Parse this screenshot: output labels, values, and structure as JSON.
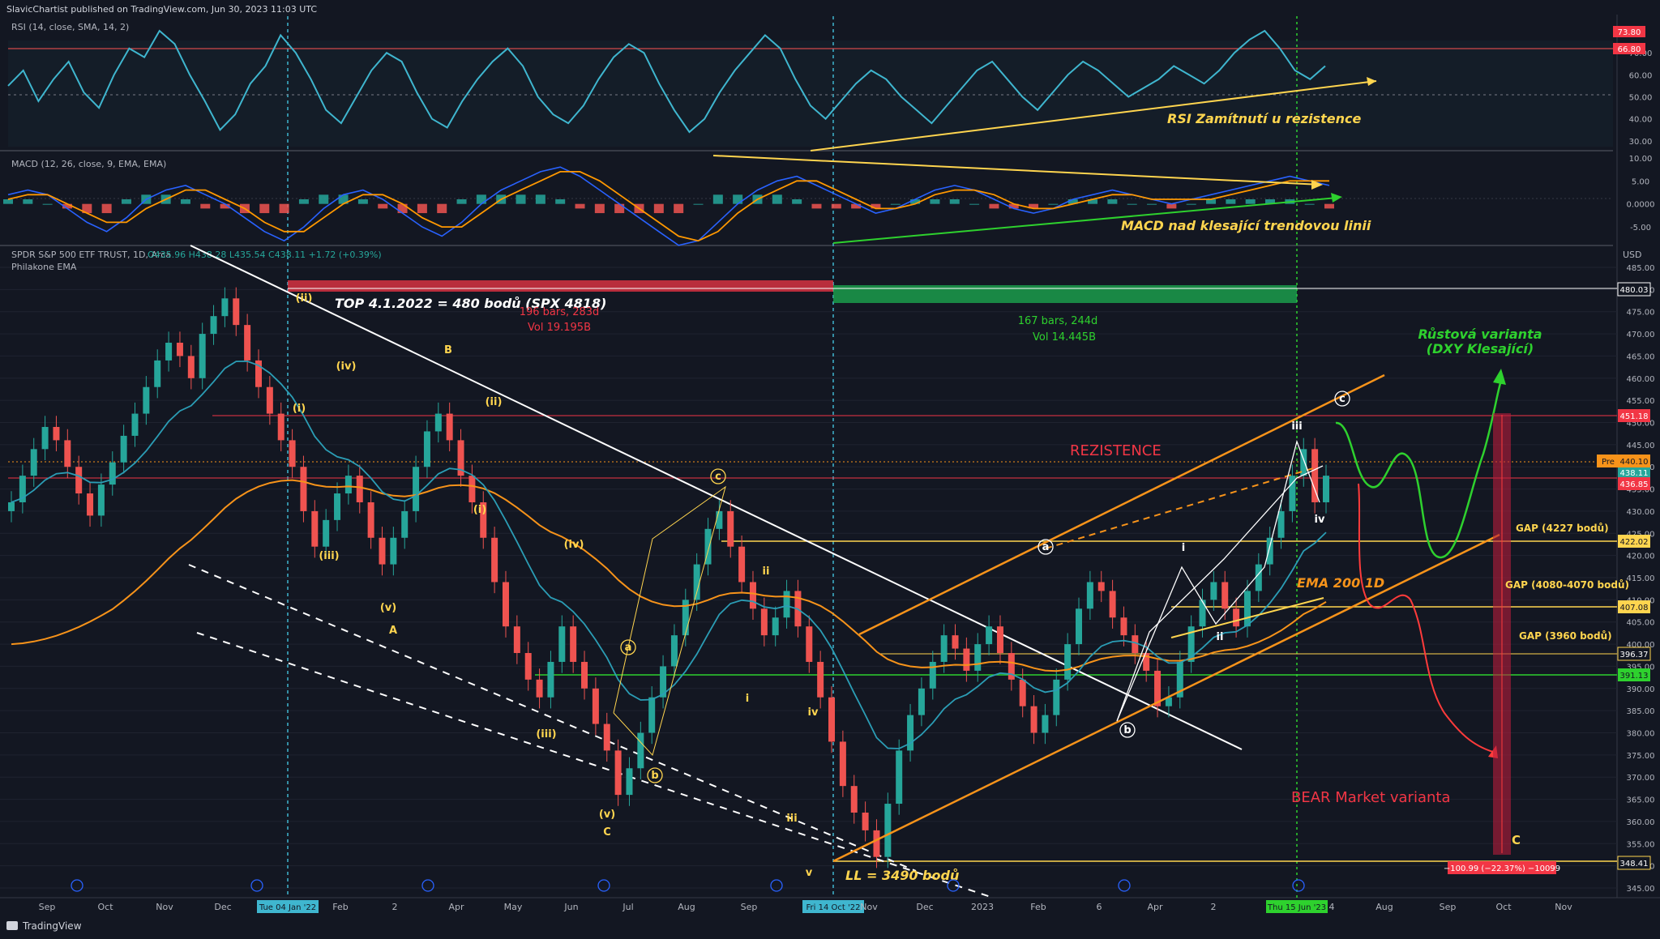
{
  "header": "SlavicChartist published on TradingView.com, Jun 30, 2023 11:03 UTC",
  "footer_logo": "TradingView",
  "colors": {
    "bg": "#131722",
    "grid": "#2a2e39",
    "rsi": "#3fb6cf",
    "macd": "#2962ff",
    "signal": "#ff9800",
    "up": "#26a69a",
    "down": "#ef5350",
    "yellow": "#ffd54f",
    "orange": "#f7931a",
    "green": "#2ed12e",
    "red": "#ff3b3b",
    "white": "#ffffff"
  },
  "rsi_panel": {
    "label": "RSI (14, close, SMA, 14, 2)",
    "ticks": [
      "70.00",
      "60.00",
      "50.00",
      "40.00",
      "30.00"
    ],
    "badges": [
      "73.80",
      "66.80"
    ],
    "annotation": "RSI Zamítnutí u rezistence",
    "series": [
      55,
      62,
      48,
      58,
      66,
      52,
      45,
      60,
      72,
      68,
      80,
      74,
      60,
      48,
      35,
      42,
      56,
      64,
      78,
      70,
      58,
      44,
      38,
      50,
      62,
      70,
      66,
      52,
      40,
      36,
      48,
      58,
      66,
      72,
      64,
      50,
      42,
      38,
      46,
      58,
      68,
      74,
      70,
      56,
      44,
      34,
      40,
      52,
      62,
      70,
      78,
      72,
      58,
      46,
      40,
      48,
      56,
      62,
      58,
      50,
      44,
      38,
      46,
      54,
      62,
      66,
      58,
      50,
      44,
      52,
      60,
      66,
      62,
      56,
      50,
      54,
      58,
      64,
      60,
      56,
      62,
      70,
      76,
      84,
      72,
      62,
      58,
      64
    ]
  },
  "macd_panel": {
    "label": "MACD (12, 26, close, 9, EMA, EMA)",
    "ticks": [
      "10.00",
      "5.00",
      "0.0000",
      "-5.00"
    ],
    "annotation": "MACD nad klesající trendovou linii",
    "macd": [
      2,
      3,
      2,
      -1,
      -4,
      -6,
      -3,
      1,
      3,
      4,
      2,
      0,
      -3,
      -6,
      -8,
      -5,
      -1,
      2,
      3,
      1,
      -2,
      -5,
      -7,
      -4,
      0,
      3,
      5,
      7,
      8,
      6,
      3,
      0,
      -3,
      -6,
      -9,
      -8,
      -4,
      0,
      3,
      5,
      6,
      4,
      2,
      0,
      -2,
      -1,
      1,
      3,
      4,
      3,
      1,
      -1,
      -2,
      -1,
      1,
      2,
      3,
      2,
      1,
      0,
      1,
      2,
      3,
      4,
      5,
      6,
      5,
      4
    ],
    "signal": [
      1,
      2,
      2,
      0,
      -2,
      -4,
      -4,
      -1,
      1,
      3,
      3,
      1,
      -1,
      -4,
      -6,
      -6,
      -3,
      0,
      2,
      2,
      0,
      -3,
      -5,
      -5,
      -2,
      1,
      3,
      5,
      7,
      7,
      5,
      2,
      -1,
      -4,
      -7,
      -8,
      -6,
      -2,
      1,
      3,
      5,
      5,
      3,
      1,
      -1,
      -1,
      0,
      2,
      3,
      3,
      2,
      0,
      -1,
      -1,
      0,
      1,
      2,
      2,
      1,
      1,
      1,
      1,
      2,
      3,
      4,
      5,
      5,
      5
    ]
  },
  "price_panel": {
    "title": "SPDR S&P 500 ETF TRUST, 1D, Arca",
    "ohlc": "O435.96 H438.28 L435.54 C438.11 +1.72 (+0.39%)",
    "indicator": "Philakone EMA",
    "currency": "USD",
    "ticks": [
      "485.00",
      "480.00",
      "475.00",
      "470.00",
      "465.00",
      "460.00",
      "455.00",
      "450.00",
      "445.00",
      "440.00",
      "435.00",
      "430.00",
      "425.00",
      "420.00",
      "415.00",
      "410.00",
      "405.00",
      "400.00",
      "395.00",
      "390.00",
      "385.00",
      "380.00",
      "375.00",
      "370.00",
      "365.00",
      "360.00",
      "355.00",
      "350.00",
      "345.00"
    ],
    "price_badges": {
      "top": "480.03",
      "resist": "451.18",
      "pre_label": "Pre",
      "pre": "440.10",
      "last": "438.11",
      "r2": "436.85",
      "g1": "422.02",
      "g2": "407.08",
      "g3": "396.37",
      "support": "391.13",
      "low": "348.41",
      "drop": "−100.99 (−22.37%) −10099"
    },
    "time_axis": [
      "Sep",
      "Oct",
      "Nov",
      "Dec",
      "Tue 04 Jan '22",
      "Feb",
      "2",
      "Apr",
      "May",
      "Jun",
      "Jul",
      "Aug",
      "Sep",
      "Fri 14 Oct '22",
      "Nov",
      "Dec",
      "2023",
      "Feb",
      "6",
      "Apr",
      "2",
      "Thu 15 Jun '23",
      "4",
      "Aug",
      "Sep",
      "Oct",
      "Nov"
    ],
    "annotations": {
      "top": "TOP 4.1.2022 = 480 bodů (SPX 4818)",
      "range_red_bars": "196 bars, 283d",
      "range_red_vol": "Vol 19.195B",
      "range_green_bars": "167 bars, 244d",
      "range_green_vol": "Vol 14.445B",
      "resistance": "REZISTENCE",
      "bull": "Růstová varianta",
      "bull_sub": "(DXY Klesající)",
      "ema": "EMA 200 1D",
      "gap1": "GAP (4227 bodů)",
      "gap2": "GAP (4080-4070 bodů)",
      "gap3": "GAP (3960 bodů)",
      "bear": "BEAR Market varianta",
      "ll": "LL = 3490 bodů",
      "bear_end": "C"
    },
    "waves": [
      "(ii)",
      "(i)",
      "(iv)",
      "(iii)",
      "(v)",
      "A",
      "B",
      "(ii)",
      "(i)",
      "(iv)",
      "(iii)",
      "(v)",
      "C",
      "a",
      "b",
      "c",
      "ii",
      "i",
      "iv",
      "iii",
      "v",
      "a",
      "b",
      "i",
      "ii",
      "iii",
      "iv",
      "c"
    ],
    "close_series": [
      432,
      438,
      444,
      449,
      446,
      440,
      434,
      429,
      436,
      441,
      447,
      452,
      458,
      464,
      468,
      465,
      460,
      470,
      474,
      478,
      472,
      464,
      458,
      452,
      446,
      440,
      430,
      422,
      428,
      434,
      438,
      432,
      424,
      418,
      424,
      430,
      440,
      448,
      452,
      446,
      438,
      432,
      424,
      414,
      404,
      398,
      392,
      388,
      396,
      404,
      396,
      390,
      382,
      376,
      366,
      372,
      380,
      388,
      395,
      402,
      410,
      418,
      426,
      430,
      422,
      414,
      408,
      402,
      406,
      412,
      404,
      396,
      388,
      378,
      368,
      362,
      358,
      352,
      364,
      376,
      384,
      390,
      396,
      402,
      399,
      394,
      400,
      404,
      398,
      392,
      386,
      380,
      384,
      392,
      400,
      408,
      414,
      412,
      406,
      402,
      398,
      394,
      386,
      388,
      396,
      404,
      410,
      414,
      408,
      404,
      412,
      418,
      424,
      430,
      438,
      444,
      432,
      438
    ]
  }
}
